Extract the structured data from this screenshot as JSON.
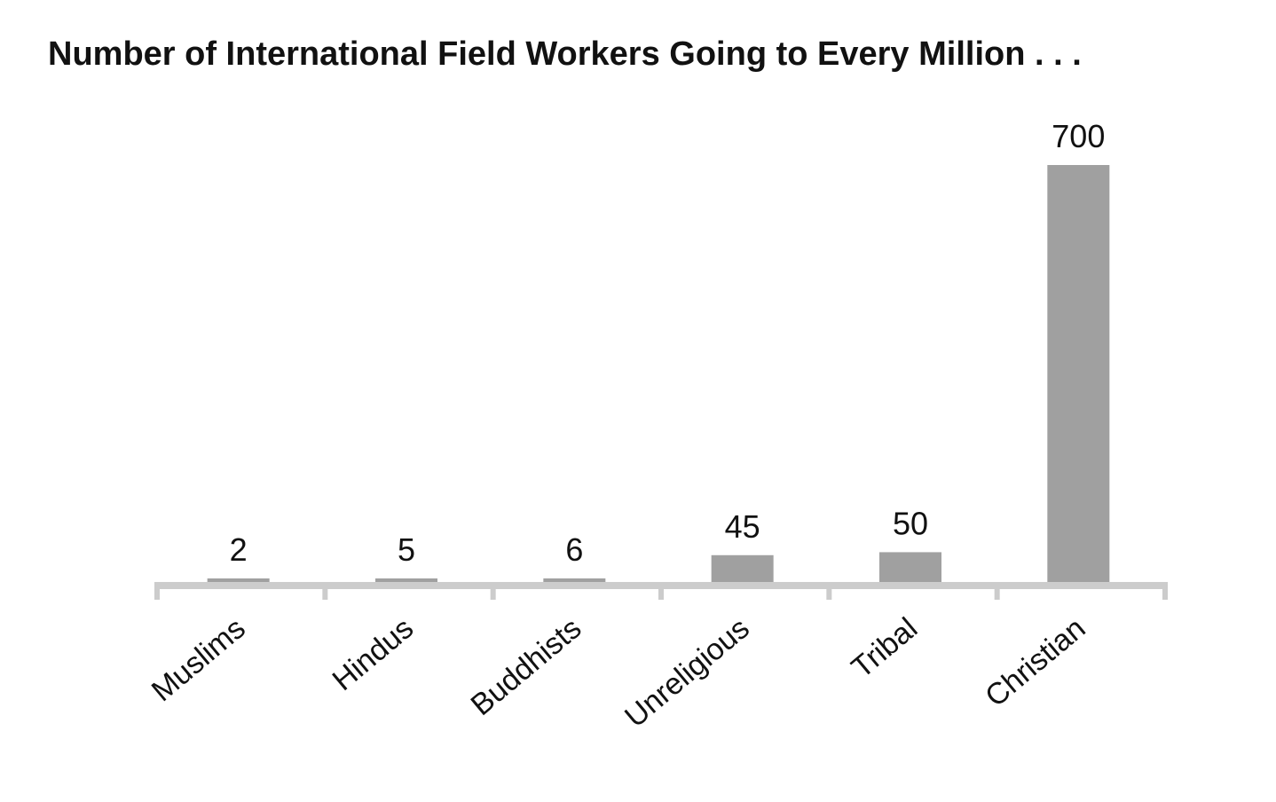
{
  "chart_data": {
    "type": "bar",
    "title": "Number of International Field Workers Going to Every Million . . .",
    "xlabel": "",
    "ylabel": "",
    "categories": [
      "Muslims",
      "Hindus",
      "Buddhists",
      "Unreligious",
      "Tribal",
      "Christian"
    ],
    "values": [
      2,
      5,
      6,
      45,
      50,
      700
    ],
    "value_labels": [
      "2",
      "5",
      "6",
      "45",
      "50",
      "700"
    ],
    "ylim": [
      0,
      700
    ],
    "grid": false,
    "legend": "none",
    "colors": {
      "bar": "#a0a0a0",
      "axis": "#cccccc",
      "text": "#111111"
    }
  }
}
